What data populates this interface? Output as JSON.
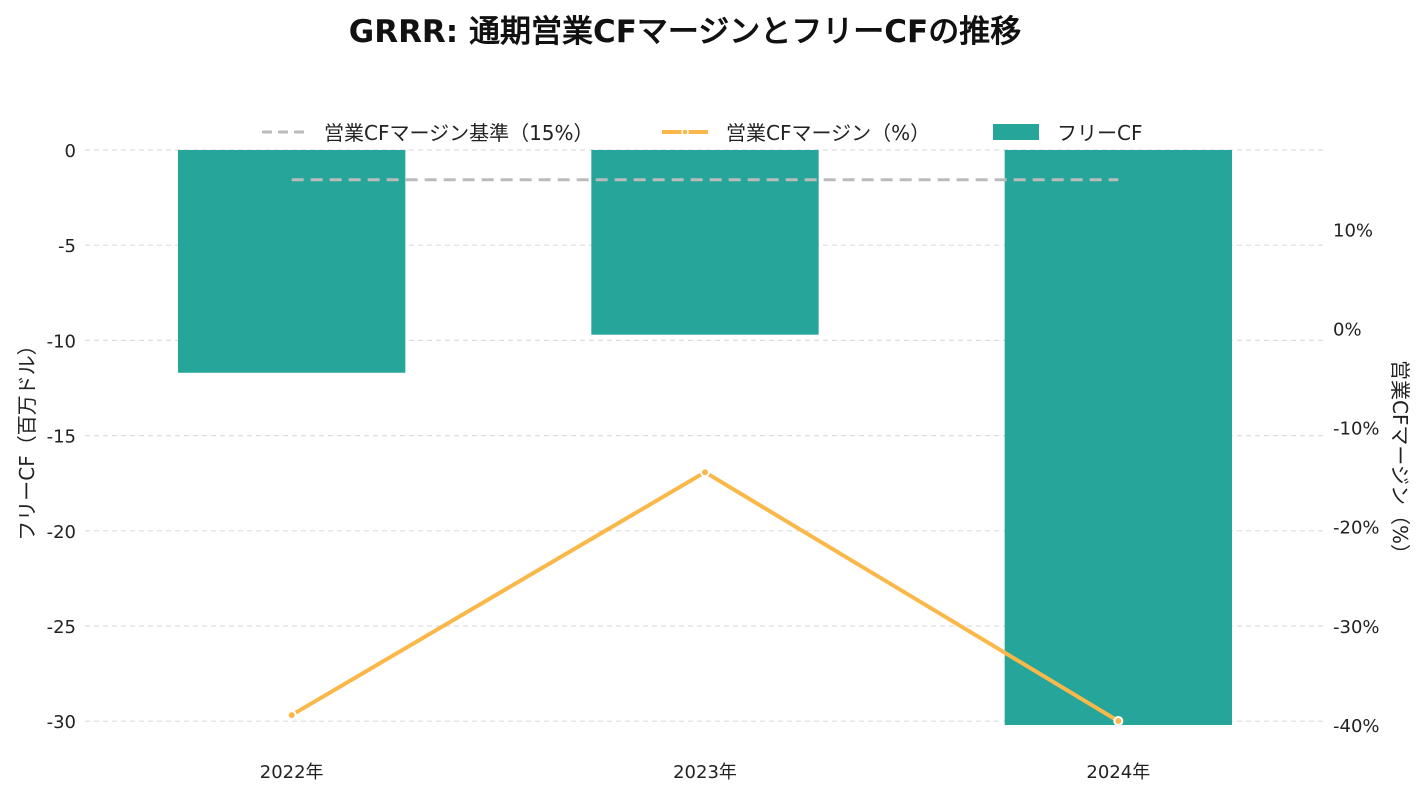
{
  "chart_data": {
    "type": "bar",
    "title": "GRRR: 通期営業CFマージンとフリーCFの推移",
    "categories": [
      "2022年",
      "2023年",
      "2024年"
    ],
    "series": [
      {
        "name": "フリーCF",
        "type": "bar",
        "axis": "left",
        "values": [
          -11.7,
          -9.7,
          -30.2
        ],
        "color": "#26a69a"
      },
      {
        "name": "営業CFマージン（%）",
        "type": "line",
        "axis": "right",
        "values": [
          -39.0,
          -14.5,
          -39.6
        ],
        "color": "#fbb84a"
      },
      {
        "name": "営業CFマージン基準（15%）",
        "type": "line",
        "axis": "right",
        "style": "dashed",
        "values": [
          15,
          15,
          15
        ],
        "color": "#bbbbbb"
      }
    ],
    "ylabel": "フリーCF（百万ドル）",
    "y2label": "営業CFマージン（%）",
    "ylim": [
      -30.2,
      0
    ],
    "y2lim": [
      -40,
      18
    ],
    "yticks": [
      0,
      -5,
      -10,
      -15,
      -20,
      -25,
      -30
    ],
    "ytick_labels": [
      "0",
      "-5",
      "-10",
      "-15",
      "-20",
      "-25",
      "-30"
    ],
    "y2ticks": [
      10,
      0,
      -10,
      -20,
      -30,
      -40
    ],
    "y2tick_labels": [
      "10%",
      "0%",
      "-10%",
      "-20%",
      "-30%",
      "-40%"
    ],
    "grid": true,
    "legend_position": "top-center",
    "legend_order": [
      "営業CFマージン基準（15%）",
      "営業CFマージン（%）",
      "フリーCF"
    ]
  }
}
